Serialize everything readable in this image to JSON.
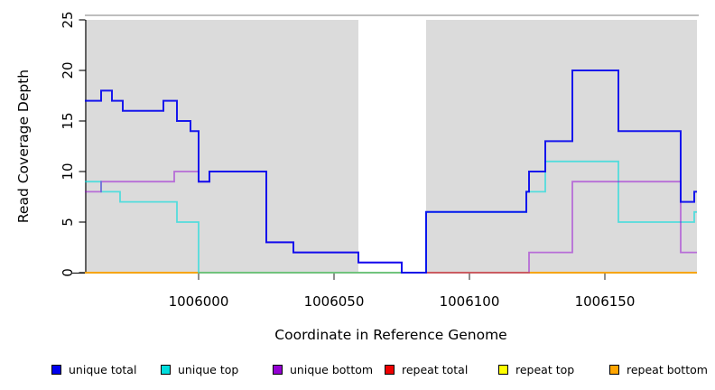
{
  "chart_data": {
    "type": "line",
    "subtype": "step",
    "xlabel": "Coordinate in Reference Genome",
    "ylabel": "Read Coverage Depth",
    "xlim": [
      1005958,
      1006184
    ],
    "ylim": [
      0,
      25
    ],
    "x_ticks": [
      1006000,
      1006050,
      1006100,
      1006150
    ],
    "y_ticks": [
      0,
      5,
      10,
      15,
      20,
      25
    ],
    "grid": false,
    "background": "#FFFFFF",
    "shaded_color": "#DBDBDB",
    "shaded_regions": [
      {
        "x0": 1005958,
        "x1": 1006059
      },
      {
        "x0": 1006084,
        "x1": 1006184
      }
    ],
    "legend_position": "bottom",
    "series": [
      {
        "name": "unique total",
        "color": "#0000EE",
        "points": [
          [
            1005958,
            17
          ],
          [
            1005964,
            18
          ],
          [
            1005968,
            17
          ],
          [
            1005972,
            16
          ],
          [
            1005987,
            17
          ],
          [
            1005992,
            15
          ],
          [
            1005997,
            14
          ],
          [
            1006000,
            9
          ],
          [
            1006004,
            10
          ],
          [
            1006025,
            3
          ],
          [
            1006035,
            2
          ],
          [
            1006059,
            1
          ],
          [
            1006075,
            0
          ],
          [
            1006084,
            6
          ],
          [
            1006121,
            8
          ],
          [
            1006122,
            10
          ],
          [
            1006128,
            13
          ],
          [
            1006138,
            20
          ],
          [
            1006155,
            14
          ],
          [
            1006178,
            7
          ],
          [
            1006183,
            8
          ]
        ]
      },
      {
        "name": "unique top",
        "color": "#00DDDD",
        "points": [
          [
            1005958,
            9
          ],
          [
            1005964,
            8
          ],
          [
            1005971,
            7
          ],
          [
            1005992,
            5
          ],
          [
            1006000,
            0
          ],
          [
            1006084,
            6
          ],
          [
            1006121,
            8
          ],
          [
            1006128,
            11
          ],
          [
            1006155,
            5
          ],
          [
            1006183,
            6
          ]
        ]
      },
      {
        "name": "unique bottom",
        "color": "#9400D3",
        "points": [
          [
            1005958,
            8
          ],
          [
            1005964,
            9
          ],
          [
            1005991,
            10
          ],
          [
            1006000,
            9
          ],
          [
            1006004,
            10
          ],
          [
            1006025,
            3
          ],
          [
            1006035,
            2
          ],
          [
            1006059,
            1
          ],
          [
            1006075,
            0
          ],
          [
            1006122,
            2
          ],
          [
            1006138,
            9
          ],
          [
            1006178,
            2
          ]
        ]
      },
      {
        "name": "repeat total",
        "color": "#EE0000",
        "points": [
          [
            1005958,
            0
          ]
        ]
      },
      {
        "name": "repeat top",
        "color": "#FFFF00",
        "points": [
          [
            1005958,
            0
          ]
        ]
      },
      {
        "name": "repeat bottom",
        "color": "#FFA500",
        "points": [
          [
            1005958,
            0
          ]
        ]
      }
    ]
  }
}
